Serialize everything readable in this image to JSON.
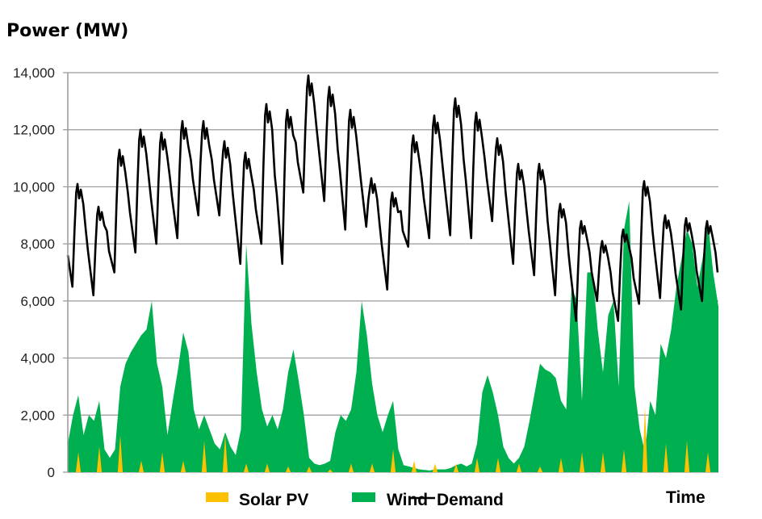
{
  "chart_data": {
    "type": "area",
    "title": "Power (MW)",
    "xlabel": "Time",
    "ylabel": "Power (MW)",
    "ylim": [
      0,
      14000
    ],
    "xlim_days": [
      0,
      31
    ],
    "grid": true,
    "y_ticks": [
      "0",
      "2,000",
      "4,000",
      "6,000",
      "8,000",
      "10,000",
      "12,000",
      "14,000"
    ],
    "y_tick_values": [
      0,
      2000,
      4000,
      6000,
      8000,
      10000,
      12000,
      14000
    ],
    "legend": {
      "placement": "bottom",
      "entries": [
        "Solar PV",
        "Wind",
        "Demand"
      ]
    },
    "colors": {
      "solar": "#FFC000",
      "wind": "#00B050",
      "demand": "#000000",
      "grid": "#999999"
    },
    "series": [
      {
        "name": "Wind",
        "type": "area",
        "time_step_days": 0.25,
        "values": [
          1000,
          2000,
          2700,
          1300,
          2000,
          1800,
          2500,
          800,
          500,
          800,
          3000,
          3800,
          4200,
          4500,
          4800,
          5000,
          6000,
          3800,
          3000,
          1300,
          2500,
          3600,
          4900,
          4200,
          2200,
          1500,
          2000,
          1500,
          1000,
          800,
          1400,
          900,
          600,
          1500,
          8000,
          5200,
          3500,
          2200,
          1600,
          2000,
          1500,
          2200,
          3500,
          4300,
          3200,
          2000,
          500,
          300,
          250,
          300,
          400,
          1400,
          2000,
          1800,
          2200,
          3500,
          6000,
          4800,
          3100,
          2000,
          1400,
          2000,
          2500,
          800,
          250,
          200,
          150,
          100,
          80,
          60,
          100,
          100,
          100,
          150,
          250,
          300,
          200,
          300,
          1000,
          2800,
          3400,
          2800,
          2000,
          900,
          500,
          300,
          500,
          900,
          1800,
          2800,
          3800,
          3600,
          3500,
          3300,
          2500,
          2200,
          6500,
          6000,
          2500,
          7000,
          7000,
          5000,
          3500,
          5500,
          6000,
          3000,
          8500,
          9500,
          3000,
          1500,
          700,
          2500,
          2000,
          4500,
          4000,
          5000,
          6500,
          7500,
          8500,
          8000,
          6500,
          7500,
          8800,
          7000,
          5800
        ]
      },
      {
        "name": "Solar PV",
        "type": "area",
        "daily_peak": [
          700,
          900,
          1300,
          400,
          700,
          400,
          1100,
          1300,
          300,
          300,
          200,
          200,
          100,
          300,
          300,
          800,
          400,
          300,
          300,
          500,
          500,
          300,
          200,
          500,
          700,
          700,
          800,
          2300,
          1000,
          1100,
          700
        ]
      },
      {
        "name": "Demand",
        "type": "line",
        "start_value": 7600,
        "daily_min": [
          6500,
          6200,
          7000,
          7700,
          8000,
          8200,
          9000,
          9000,
          7300,
          8000,
          7300,
          9800,
          9500,
          8500,
          8600,
          6400,
          7900,
          8200,
          8300,
          8200,
          8800,
          7300,
          6900,
          6200,
          5300,
          6000,
          5300,
          5900,
          6100,
          5700,
          6000
        ],
        "daily_peak": [
          10100,
          9300,
          11300,
          12000,
          11900,
          12300,
          12300,
          11600,
          11200,
          12900,
          12700,
          13900,
          13500,
          12700,
          10300,
          9800,
          11800,
          12500,
          13100,
          12600,
          11700,
          10800,
          10800,
          9400,
          8800,
          8100,
          8500,
          10200,
          9000,
          8900,
          8800
        ]
      }
    ]
  }
}
